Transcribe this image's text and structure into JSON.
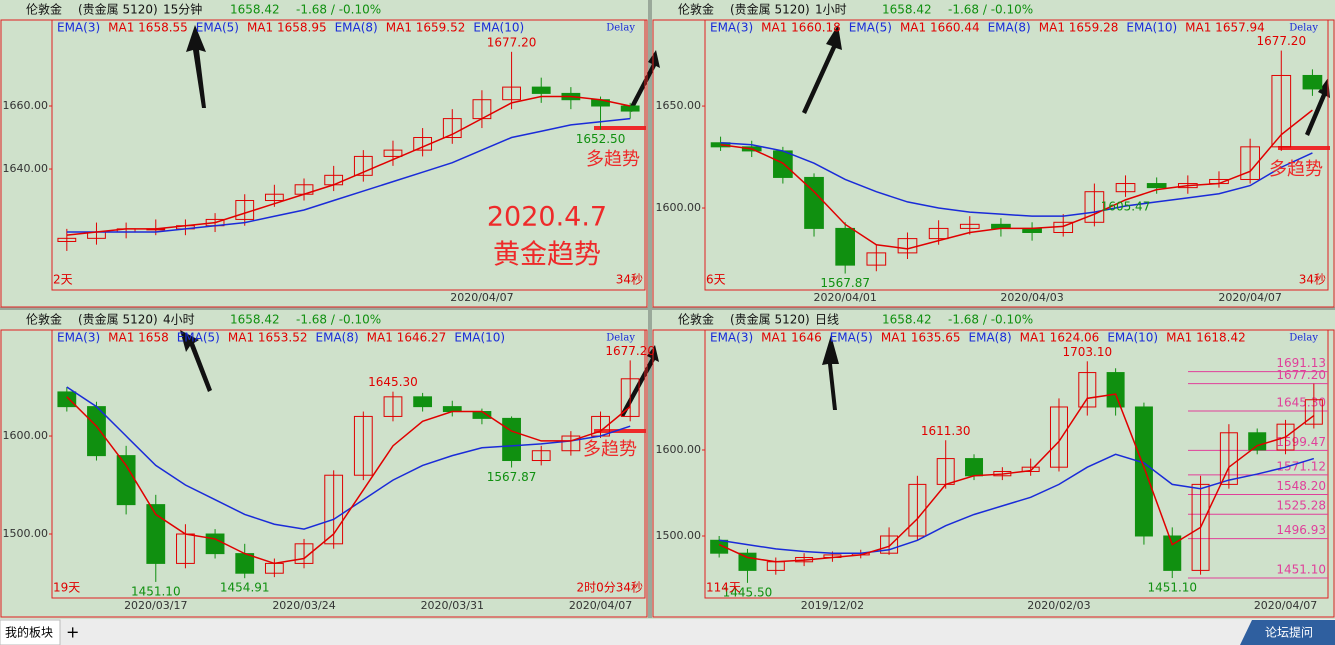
{
  "chart_data": [
    {
      "type": "candlestick",
      "header": {
        "name": "伦敦金",
        "market": "(贵金属 5120)",
        "period": "15分钟",
        "price": "1658.42",
        "change": "-1.68 / -0.10%"
      },
      "indicators": [
        {
          "text": "EMA(3)",
          "color": "#1a2bd8"
        },
        {
          "text": "MA1 1658.55",
          "color": "#e00000"
        },
        {
          "text": "EMA(5)",
          "color": "#1a2bd8"
        },
        {
          "text": "MA1 1658.95",
          "color": "#e00000"
        },
        {
          "text": "EMA(8)",
          "color": "#1a2bd8"
        },
        {
          "text": "MA1 1659.52",
          "color": "#e00000"
        },
        {
          "text": "EMA(10)",
          "color": "#1a2bd8"
        }
      ],
      "delay": "Delay",
      "categories": [
        null,
        null,
        null,
        null,
        null,
        null,
        null,
        null,
        null,
        null,
        null,
        null,
        null,
        null,
        "2020/04/07",
        null,
        null,
        null,
        null,
        null
      ],
      "open": [
        1617,
        1618,
        1620,
        1621,
        1621,
        1622,
        1624,
        1630,
        1632,
        1635,
        1638,
        1644,
        1646,
        1650,
        1656,
        1662,
        1666,
        1664,
        1662,
        1660
      ],
      "high": [
        1621,
        1623,
        1623,
        1624,
        1624,
        1626,
        1632,
        1635,
        1637,
        1641,
        1646,
        1649,
        1653,
        1659,
        1665,
        1677.2,
        1669,
        1666,
        1663,
        1661
      ],
      "low": [
        1614,
        1616,
        1618,
        1619,
        1619,
        1620,
        1622,
        1628,
        1630,
        1633,
        1636,
        1641,
        1644,
        1648,
        1653,
        1659,
        1661,
        1659,
        1652.5,
        1656
      ],
      "close": [
        1618,
        1620,
        1621,
        1621,
        1622,
        1624,
        1630,
        1632,
        1635,
        1638,
        1644,
        1646,
        1650,
        1656,
        1662,
        1666,
        1664,
        1662,
        1660,
        1658.4
      ],
      "series": [
        {
          "color": "#1a2bd8",
          "values": [
            1620,
            1620,
            1620,
            1620,
            1621,
            1622,
            1623,
            1625,
            1627,
            1630,
            1633,
            1636,
            1639,
            1642,
            1646,
            1650,
            1652,
            1654,
            1655,
            1656
          ]
        },
        {
          "color": "#e00000",
          "values": [
            1619,
            1620,
            1621,
            1621,
            1622,
            1623,
            1626,
            1629,
            1632,
            1635,
            1639,
            1643,
            1647,
            1651,
            1656,
            1661,
            1663,
            1663,
            1662,
            1660
          ]
        }
      ],
      "up_color": "#e00000",
      "down_color": "#109010",
      "ylim": [
        1601.6,
        1687.3
      ],
      "yticks": [
        {
          "value": 1640,
          "label": "1640.00"
        },
        {
          "value": 1660,
          "label": "1660.00"
        }
      ],
      "annotations": [
        {
          "label": "1677.20",
          "value": 1677.2,
          "at": "high"
        },
        {
          "label": "1652.50",
          "value": 1652.5,
          "at": "low"
        }
      ],
      "notes": {
        "left": "2天",
        "right": "34秒"
      },
      "trend_note": "多趋势",
      "title_lines": [
        "2020.4.7",
        "黄金趋势"
      ]
    },
    {
      "type": "candlestick",
      "header": {
        "name": "伦敦金",
        "market": "(贵金属 5120)",
        "period": "1小时",
        "price": "1658.42",
        "change": "-1.68 / -0.10%"
      },
      "indicators": [
        {
          "text": "EMA(3)",
          "color": "#1a2bd8"
        },
        {
          "text": "MA1 1660.18",
          "color": "#e00000"
        },
        {
          "text": "EMA(5)",
          "color": "#1a2bd8"
        },
        {
          "text": "MA1 1660.44",
          "color": "#e00000"
        },
        {
          "text": "EMA(8)",
          "color": "#1a2bd8"
        },
        {
          "text": "MA1 1659.28",
          "color": "#e00000"
        },
        {
          "text": "EMA(10)",
          "color": "#1a2bd8"
        },
        {
          "text": "MA1 1657.94",
          "color": "#e00000"
        }
      ],
      "delay": "Delay",
      "categories": [
        null,
        null,
        null,
        null,
        "2020/04/01",
        null,
        null,
        null,
        null,
        null,
        "2020/04/03",
        null,
        null,
        null,
        null,
        null,
        null,
        "2020/04/07",
        null,
        null
      ],
      "open": [
        1632,
        1630,
        1628,
        1615,
        1590,
        1572,
        1578,
        1585,
        1590,
        1592,
        1590,
        1588,
        1593,
        1608,
        1612,
        1610,
        1612,
        1614,
        1630,
        1665
      ],
      "high": [
        1635,
        1633,
        1630,
        1617,
        1593,
        1582,
        1588,
        1594,
        1596,
        1595,
        1593,
        1597,
        1612,
        1616,
        1615,
        1616,
        1618,
        1634,
        1677.2,
        1668
      ],
      "low": [
        1628,
        1625,
        1612,
        1586,
        1567.87,
        1569,
        1575,
        1582,
        1587,
        1586,
        1584,
        1586,
        1591,
        1605.47,
        1607,
        1607,
        1610,
        1612,
        1628,
        1655
      ],
      "close": [
        1630,
        1628,
        1615,
        1590,
        1572,
        1578,
        1585,
        1590,
        1592,
        1590,
        1588,
        1593,
        1608,
        1612,
        1610,
        1612,
        1614,
        1630,
        1665,
        1658.4
      ],
      "series": [
        {
          "color": "#1a2bd8",
          "values": [
            1632,
            1631,
            1628,
            1622,
            1614,
            1608,
            1603,
            1600,
            1598,
            1597,
            1596,
            1596,
            1598,
            1601,
            1603,
            1605,
            1607,
            1611,
            1620,
            1627
          ]
        },
        {
          "color": "#e00000",
          "values": [
            1631,
            1629,
            1622,
            1608,
            1592,
            1582,
            1580,
            1584,
            1588,
            1590,
            1590,
            1591,
            1597,
            1604,
            1609,
            1611,
            1612,
            1618,
            1636,
            1648
          ]
        }
      ],
      "up_color": "#e00000",
      "down_color": "#109010",
      "ylim": [
        1559.8,
        1692.2
      ],
      "yticks": [
        {
          "value": 1600,
          "label": "1600.00"
        },
        {
          "value": 1650,
          "label": "1650.00"
        }
      ],
      "annotations": [
        {
          "label": "1677.20",
          "value": 1677.2,
          "at": "high"
        },
        {
          "label": "1567.87",
          "value": 1567.87,
          "at": "low"
        },
        {
          "label": "1605.47",
          "value": 1605.47,
          "at": "low"
        }
      ],
      "notes": {
        "left": "6天",
        "right": "34秒"
      },
      "trend_note": "多趋势"
    },
    {
      "type": "candlestick",
      "header": {
        "name": "伦敦金",
        "market": "(贵金属 5120)",
        "period": "4小时",
        "price": "1658.42",
        "change": "-1.68 / -0.10%"
      },
      "indicators": [
        {
          "text": "EMA(3)",
          "color": "#1a2bd8"
        },
        {
          "text": "MA1 1658",
          "color": "#e00000"
        },
        {
          "text": "EMA(5)",
          "color": "#1a2bd8"
        },
        {
          "text": "MA1 1653.52",
          "color": "#e00000"
        },
        {
          "text": "EMA(8)",
          "color": "#1a2bd8"
        },
        {
          "text": "MA1 1646.27",
          "color": "#e00000"
        },
        {
          "text": "EMA(10)",
          "color": "#1a2bd8"
        }
      ],
      "delay": "Delay",
      "categories": [
        null,
        null,
        null,
        "2020/03/17",
        null,
        null,
        null,
        null,
        "2020/03/24",
        null,
        null,
        null,
        null,
        "2020/03/31",
        null,
        null,
        null,
        null,
        "2020/04/07",
        null
      ],
      "open": [
        1645,
        1630,
        1580,
        1530,
        1470,
        1500,
        1480,
        1460,
        1470,
        1490,
        1560,
        1620,
        1640,
        1630,
        1625,
        1618,
        1575,
        1585,
        1600,
        1620
      ],
      "high": [
        1650,
        1635,
        1590,
        1540,
        1510,
        1505,
        1490,
        1475,
        1495,
        1565,
        1625,
        1645.3,
        1644,
        1636,
        1628,
        1620,
        1590,
        1605,
        1625,
        1677.2
      ],
      "low": [
        1625,
        1575,
        1520,
        1451.1,
        1465,
        1475,
        1454.91,
        1456,
        1465,
        1485,
        1555,
        1615,
        1625,
        1620,
        1612,
        1567.87,
        1570,
        1580,
        1598,
        1615
      ],
      "close": [
        1630,
        1580,
        1530,
        1470,
        1500,
        1480,
        1460,
        1470,
        1490,
        1560,
        1620,
        1640,
        1630,
        1625,
        1618,
        1575,
        1585,
        1600,
        1620,
        1658.4
      ],
      "series": [
        {
          "color": "#1a2bd8",
          "values": [
            1650,
            1630,
            1600,
            1570,
            1550,
            1535,
            1520,
            1510,
            1505,
            1515,
            1535,
            1555,
            1570,
            1580,
            1588,
            1590,
            1592,
            1595,
            1600,
            1610
          ]
        },
        {
          "color": "#e00000",
          "values": [
            1640,
            1610,
            1570,
            1520,
            1500,
            1495,
            1480,
            1470,
            1475,
            1500,
            1545,
            1590,
            1615,
            1625,
            1625,
            1605,
            1595,
            1595,
            1605,
            1630
          ]
        }
      ],
      "up_color": "#e00000",
      "down_color": "#109010",
      "ylim": [
        1434.7,
        1708.2
      ],
      "yticks": [
        {
          "value": 1500,
          "label": "1500.00"
        },
        {
          "value": 1600,
          "label": "1600.00"
        }
      ],
      "annotations": [
        {
          "label": "1677.20",
          "value": 1677.2,
          "at": "high"
        },
        {
          "label": "1645.30",
          "value": 1645.3,
          "at": "high"
        },
        {
          "label": "1451.10",
          "value": 1451.1,
          "at": "low"
        },
        {
          "label": "1454.91",
          "value": 1454.91,
          "at": "low"
        },
        {
          "label": "1567.87",
          "value": 1567.87,
          "at": "low"
        }
      ],
      "notes": {
        "left": "19天",
        "right": "2时0分34秒"
      },
      "trend_note": "多趋势"
    },
    {
      "type": "candlestick",
      "header": {
        "name": "伦敦金",
        "market": "(贵金属 5120)",
        "period": "日线",
        "price": "1658.42",
        "change": "-1.68 / -0.10%"
      },
      "indicators": [
        {
          "text": "EMA(3)",
          "color": "#1a2bd8"
        },
        {
          "text": "MA1 1646",
          "color": "#e00000"
        },
        {
          "text": "EMA(5)",
          "color": "#1a2bd8"
        },
        {
          "text": "MA1 1635.65",
          "color": "#e00000"
        },
        {
          "text": "EMA(8)",
          "color": "#1a2bd8"
        },
        {
          "text": "MA1 1624.06",
          "color": "#e00000"
        },
        {
          "text": "EMA(10)",
          "color": "#1a2bd8"
        },
        {
          "text": "MA1 1618.42",
          "color": "#e00000"
        }
      ],
      "delay": "Delay",
      "categories": [
        null,
        null,
        null,
        null,
        "2019/12/02",
        null,
        null,
        null,
        null,
        null,
        null,
        null,
        "2020/02/03",
        null,
        null,
        null,
        null,
        null,
        null,
        null,
        "2020/04/07",
        null
      ],
      "open": [
        1495,
        1480,
        1460,
        1470,
        1475,
        1478,
        1480,
        1500,
        1560,
        1590,
        1570,
        1575,
        1580,
        1650,
        1690,
        1650,
        1500,
        1460,
        1560,
        1620,
        1600,
        1630
      ],
      "high": [
        1500,
        1485,
        1475,
        1480,
        1482,
        1484,
        1510,
        1570,
        1611.3,
        1595,
        1580,
        1590,
        1660,
        1703.1,
        1695,
        1655,
        1510,
        1570,
        1630,
        1625,
        1635,
        1677.2
      ],
      "low": [
        1475,
        1445.5,
        1455,
        1465,
        1470,
        1474,
        1478,
        1495,
        1555,
        1565,
        1565,
        1570,
        1575,
        1640,
        1640,
        1490,
        1451.1,
        1455,
        1555,
        1595,
        1595,
        1625
      ],
      "close": [
        1480,
        1460,
        1470,
        1475,
        1478,
        1480,
        1500,
        1560,
        1590,
        1570,
        1575,
        1580,
        1650,
        1690,
        1650,
        1500,
        1460,
        1560,
        1620,
        1600,
        1630,
        1658.4
      ],
      "series": [
        {
          "color": "#1a2bd8",
          "values": [
            1495,
            1490,
            1485,
            1482,
            1480,
            1480,
            1484,
            1495,
            1512,
            1525,
            1535,
            1545,
            1560,
            1580,
            1595,
            1585,
            1560,
            1555,
            1565,
            1572,
            1580,
            1590
          ]
        },
        {
          "color": "#e00000",
          "values": [
            1490,
            1475,
            1470,
            1472,
            1475,
            1478,
            1488,
            1520,
            1560,
            1570,
            1572,
            1576,
            1610,
            1660,
            1665,
            1580,
            1490,
            1510,
            1580,
            1605,
            1615,
            1640
          ]
        }
      ],
      "up_color": "#e00000",
      "down_color": "#109010",
      "ylim": [
        1427.9,
        1739.5
      ],
      "yticks": [
        {
          "value": 1500,
          "label": "1500.00"
        },
        {
          "value": 1600,
          "label": "1600.00"
        }
      ],
      "annotations": [
        {
          "label": "1703.10",
          "value": 1703.1,
          "at": "high"
        },
        {
          "label": "1611.30",
          "value": 1611.3,
          "at": "high"
        },
        {
          "label": "1445.50",
          "value": 1445.5,
          "at": "low"
        },
        {
          "label": "1451.10",
          "value": 1451.1,
          "at": "low"
        }
      ],
      "levels": [
        {
          "value": 1691.13,
          "label": "1691.13"
        },
        {
          "value": 1677.2,
          "label": "1677.20"
        },
        {
          "value": 1645.3,
          "label": "1645.30"
        },
        {
          "value": 1599.47,
          "label": "1599.47"
        },
        {
          "value": 1571.12,
          "label": "1571.12"
        },
        {
          "value": 1548.2,
          "label": "1548.20"
        },
        {
          "value": 1525.28,
          "label": "1525.28"
        },
        {
          "value": 1496.93,
          "label": "1496.93"
        },
        {
          "value": 1451.1,
          "label": "1451.10"
        }
      ],
      "level_color": "#e0409a",
      "notes": {
        "left": "114天"
      }
    }
  ],
  "toolbar": {
    "tab": "我的板块",
    "add": "+",
    "forum": "论坛提问"
  }
}
